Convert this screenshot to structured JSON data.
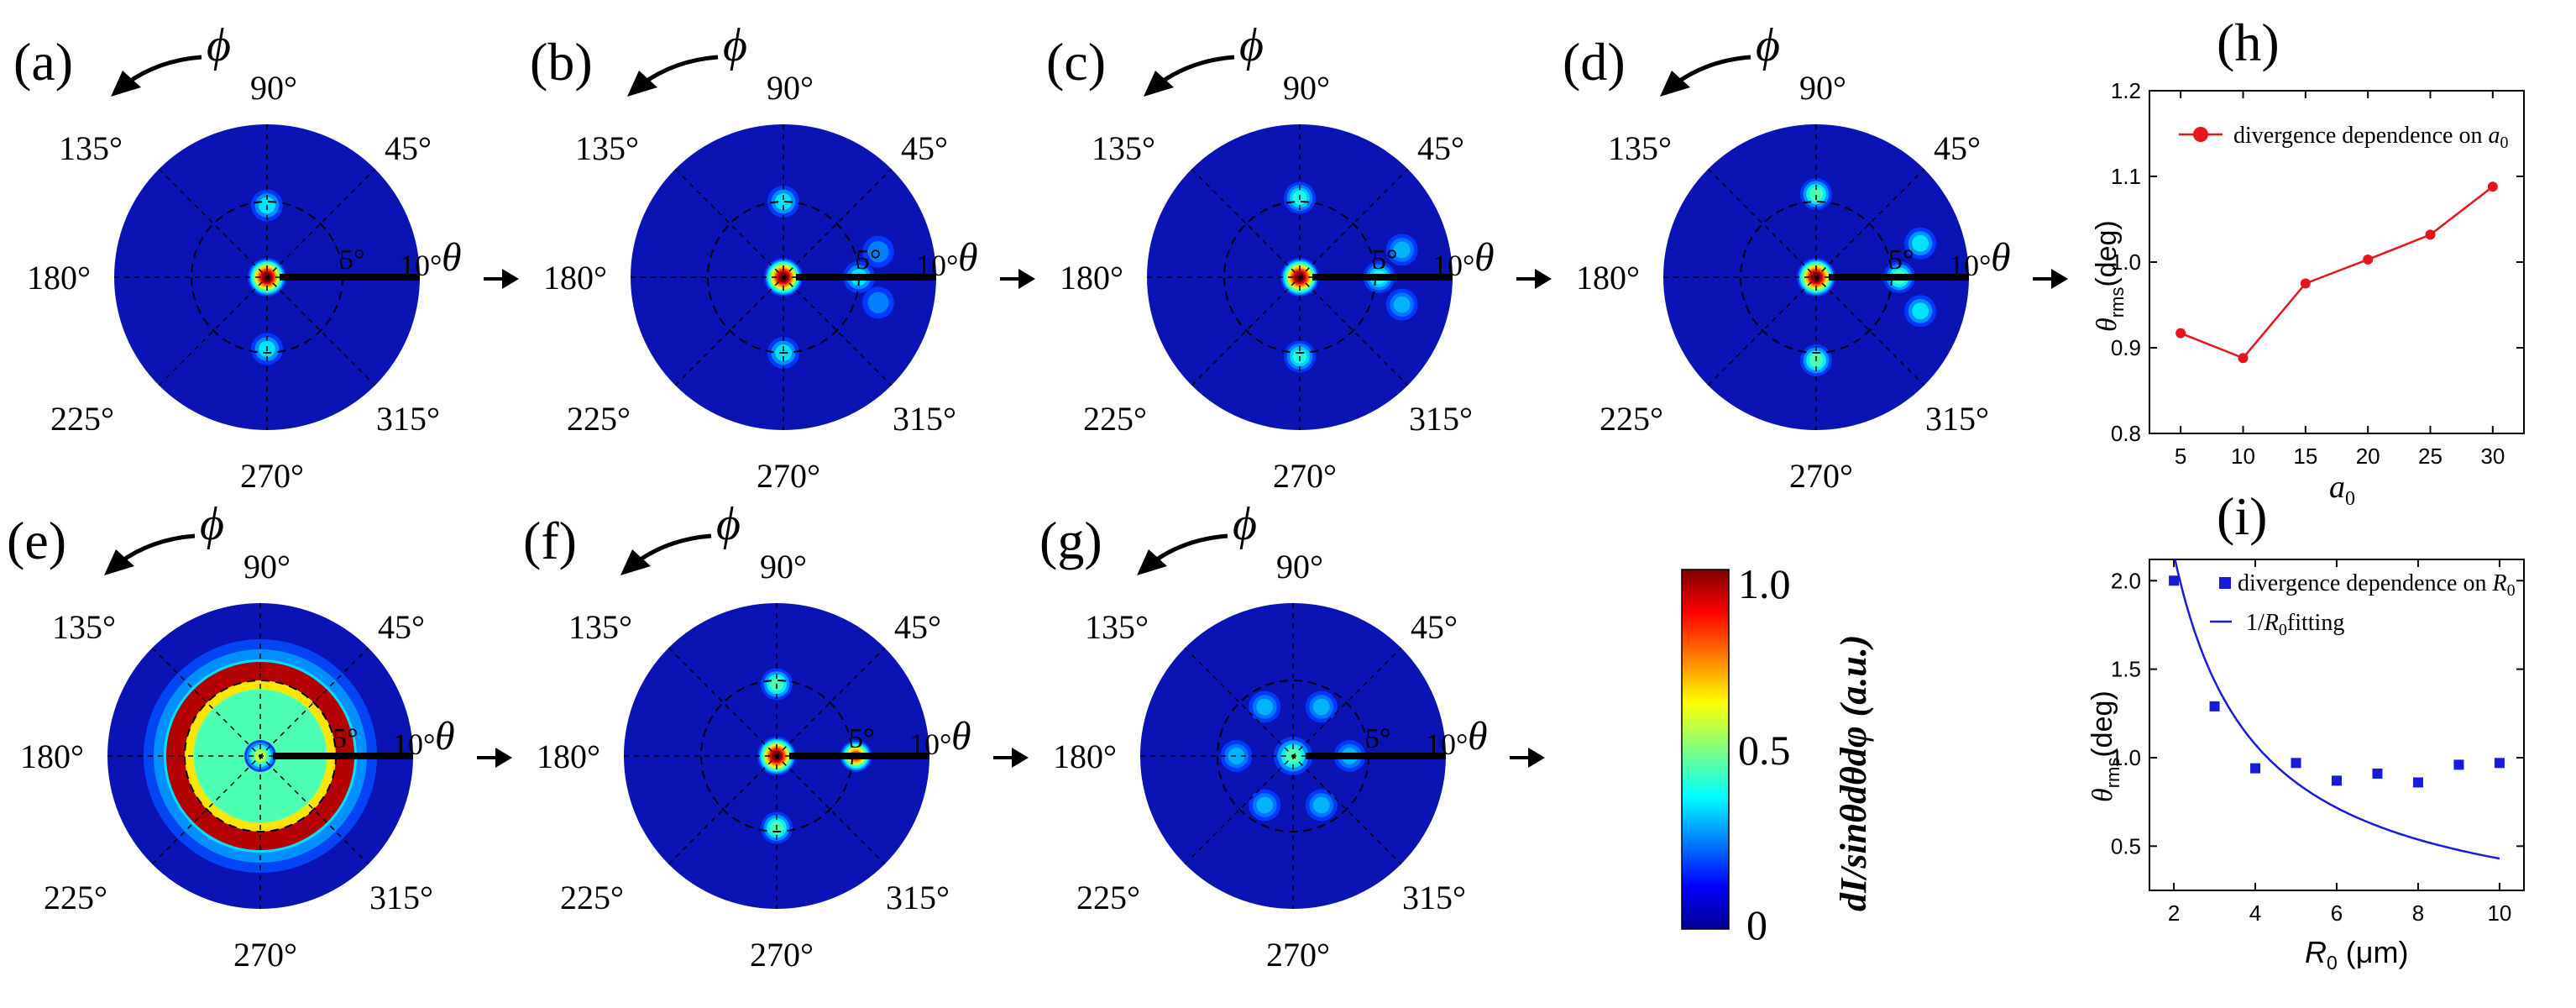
{
  "figure": {
    "polar_panels": [
      {
        "label": "(a)",
        "blobs": [
          [
            0,
            0,
            1.0
          ],
          [
            90,
            0.95,
            0.35
          ],
          [
            270,
            0.95,
            0.35
          ]
        ]
      },
      {
        "label": "(b)",
        "blobs": [
          [
            0,
            0,
            1.0
          ],
          [
            90,
            1.0,
            0.35
          ],
          [
            270,
            1.0,
            0.35
          ],
          [
            0,
            1.0,
            0.35
          ],
          [
            15,
            1.3,
            0.25
          ],
          [
            -15,
            1.3,
            0.25
          ]
        ]
      },
      {
        "label": "(c)",
        "blobs": [
          [
            0,
            0,
            1.0
          ],
          [
            90,
            1.05,
            0.4
          ],
          [
            270,
            1.05,
            0.4
          ],
          [
            0,
            1.05,
            0.4
          ],
          [
            15,
            1.4,
            0.3
          ],
          [
            -15,
            1.4,
            0.3
          ]
        ]
      },
      {
        "label": "(d)",
        "blobs": [
          [
            0,
            0,
            1.0
          ],
          [
            90,
            1.1,
            0.45
          ],
          [
            270,
            1.1,
            0.45
          ],
          [
            0,
            1.1,
            0.45
          ],
          [
            18,
            1.45,
            0.35
          ],
          [
            -18,
            1.45,
            0.35
          ]
        ]
      },
      {
        "label": "(e)",
        "blobs": [
          [
            0,
            0,
            0.55
          ]
        ],
        "ring": {
          "radius": 1.1,
          "level": 0.95
        }
      },
      {
        "label": "(f)",
        "blobs": [
          [
            0,
            0,
            1.0
          ],
          [
            0,
            1.05,
            0.8
          ],
          [
            90,
            0.95,
            0.45
          ],
          [
            270,
            0.95,
            0.45
          ]
        ]
      },
      {
        "label": "(g)",
        "blobs": [
          [
            0,
            0,
            0.45
          ],
          [
            60,
            0.75,
            0.3
          ],
          [
            120,
            0.75,
            0.3
          ],
          [
            180,
            0.75,
            0.3
          ],
          [
            240,
            0.75,
            0.3
          ],
          [
            300,
            0.75,
            0.3
          ],
          [
            0,
            0.75,
            0.3
          ]
        ]
      }
    ],
    "angle_labels": {
      "a90": "90°",
      "a45": "45°",
      "a135": "135°",
      "a180": "180°",
      "a225": "225°",
      "a270": "270°",
      "a315": "315°",
      "r5": "5°",
      "r10": "10°"
    },
    "phi_symbol": "ϕ",
    "theta_symbol": "θ",
    "colorbar": {
      "max_label": "1.0",
      "mid_label": "0.5",
      "min_label": "0",
      "axis_label": "dI/sinθdθdφ (a.u.)"
    }
  },
  "chart_data": [
    {
      "panel": "(h)",
      "type": "line",
      "x": [
        5,
        10,
        15,
        20,
        25,
        30
      ],
      "y": [
        0.917,
        0.888,
        0.975,
        1.003,
        1.032,
        1.088
      ],
      "xlim": [
        2.5,
        32.5
      ],
      "ylim": [
        0.8,
        1.2
      ],
      "xticks": [
        "5",
        "10",
        "15",
        "20",
        "25",
        "30"
      ],
      "yticks": [
        "0.8",
        "0.9",
        "1.0",
        "1.1",
        "1.2"
      ],
      "xlabel": "a0",
      "ylabel": "θrms(deg)",
      "legend": [
        {
          "name": "divergence dependence on a0",
          "color": "#e8141b",
          "marker": "circle"
        }
      ],
      "legend_position": "top-left",
      "grid": false
    },
    {
      "panel": "(i)",
      "type": "scatter",
      "series": [
        {
          "name": "divergence dependence on R0",
          "x": [
            2,
            3,
            4,
            5,
            6,
            7,
            8,
            9,
            10
          ],
          "y": [
            2.0,
            1.29,
            0.94,
            0.97,
            0.87,
            0.91,
            0.86,
            0.96,
            0.97
          ],
          "color": "#1a1adc",
          "marker": "square"
        },
        {
          "name": "1/R0fitting",
          "type": "line",
          "function": "4.3/x",
          "x_range": [
            1.9,
            10
          ],
          "color": "#1a1adc"
        }
      ],
      "xlim": [
        1.4,
        10.6
      ],
      "ylim": [
        0.25,
        2.12
      ],
      "xticks": [
        "2",
        "4",
        "6",
        "8",
        "10"
      ],
      "yticks": [
        "0.5",
        "1.0",
        "1.5",
        "2.0"
      ],
      "xlabel": "R0 (μm)",
      "ylabel": "θrms(deg)",
      "legend_position": "top-right",
      "grid": false
    }
  ]
}
